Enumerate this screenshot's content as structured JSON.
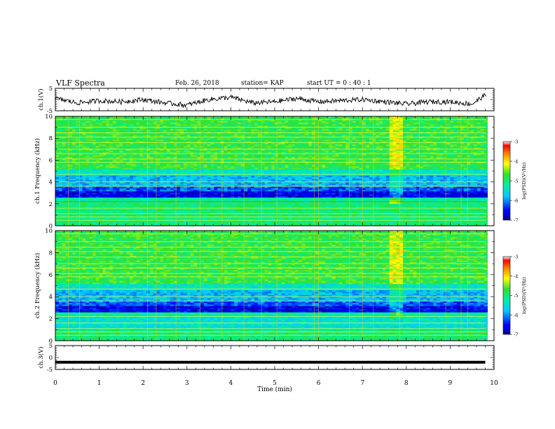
{
  "header": {
    "title": "VLF Spectra",
    "date": "Feb. 26, 2018",
    "station": "station= KAP",
    "start": "start  UT =   0 : 40 : 1"
  },
  "colors": {
    "colormap": [
      "#0000c8",
      "#0050ff",
      "#00c8ff",
      "#00e6a0",
      "#30e030",
      "#c8f020",
      "#ffff00",
      "#ff8000",
      "#ff0000",
      "#ffffff"
    ]
  },
  "chart_data": [
    {
      "type": "line",
      "ylabel": "ch.1(V)",
      "ylim": [
        -5,
        5
      ],
      "yticks": [
        5,
        -5
      ],
      "xlim": [
        0,
        10
      ],
      "description_series": "ch.1 waveform",
      "x": [
        0,
        0.5,
        1,
        1.5,
        2,
        2.5,
        3,
        3.5,
        4,
        4.5,
        5,
        5.5,
        6,
        6.5,
        7,
        7.5,
        8,
        8.5,
        9,
        9.5,
        9.8
      ],
      "values": [
        0.5,
        -1.5,
        -0.5,
        -1,
        0,
        -1.5,
        -2.5,
        0,
        1,
        -1.5,
        -1,
        0.5,
        -1,
        -0.5,
        0,
        -1,
        -2,
        -1,
        -1,
        -2,
        2
      ]
    },
    {
      "type": "heatmap",
      "ylabel": "ch.1 Frequency (kHz)",
      "ylim": [
        0,
        10
      ],
      "yticks": [
        0,
        2,
        4,
        6,
        8,
        10
      ],
      "xlim": [
        0,
        10
      ],
      "colorbar": {
        "label": "log(PSD)(V²/Hz)",
        "range": [
          -7,
          -3
        ],
        "ticks": [
          -3,
          -4,
          -5,
          -6,
          -7
        ]
      }
    },
    {
      "type": "heatmap",
      "ylabel": "ch.2 Frequency (kHz)",
      "ylim": [
        0,
        10
      ],
      "yticks": [
        0,
        2,
        4,
        6,
        8,
        10
      ],
      "xlim": [
        0,
        10
      ],
      "colorbar": {
        "label": "log(PSD)(V²/Hz)",
        "range": [
          -7,
          -3
        ],
        "ticks": [
          -3,
          -4,
          -5,
          -6,
          -7
        ]
      }
    },
    {
      "type": "line",
      "ylabel": "ch.3(V)",
      "ylim": [
        -5,
        5
      ],
      "yticks": [
        5,
        0,
        -5
      ],
      "xlim": [
        0,
        10
      ],
      "x": [
        0,
        9.8
      ],
      "values": [
        -2,
        -2
      ]
    }
  ],
  "xaxis": {
    "label": "Time  (min)",
    "ticks": [
      "0",
      "1",
      "2",
      "3",
      "4",
      "5",
      "6",
      "7",
      "8",
      "9",
      "10"
    ]
  }
}
